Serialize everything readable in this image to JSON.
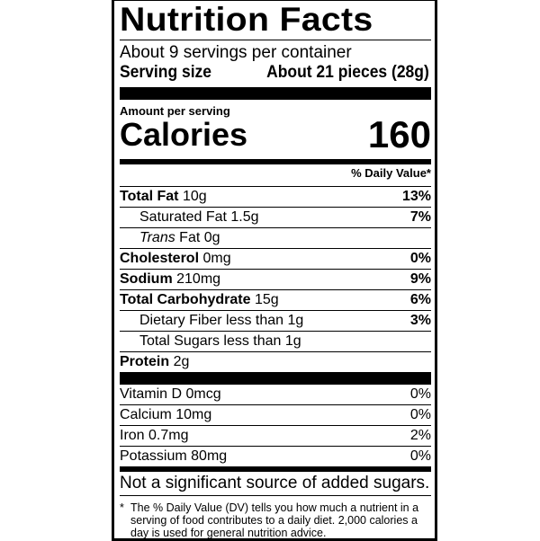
{
  "title": "Nutrition Facts",
  "servings_per_container": "About 9 servings per container",
  "serving_size": {
    "label": "Serving size",
    "value": "About 21 pieces (28g)"
  },
  "amount_per_serving": "Amount per serving",
  "calories": {
    "label": "Calories",
    "value": "160"
  },
  "daily_value_header": "% Daily Value*",
  "nutrients": [
    {
      "name": "Total Fat",
      "amount": "10g",
      "dv": "13%"
    },
    {
      "name": "Saturated Fat",
      "amount": "1.5g",
      "dv": "7%"
    },
    {
      "name": "Trans",
      "name_suffix": "Fat",
      "amount": "0g",
      "dv": ""
    },
    {
      "name": "Cholesterol",
      "amount": "0mg",
      "dv": "0%"
    },
    {
      "name": "Sodium",
      "amount": "210mg",
      "dv": "9%"
    },
    {
      "name": "Total Carbohydrate",
      "amount": "15g",
      "dv": "6%"
    },
    {
      "name": "Dietary Fiber",
      "amount": "less than 1g",
      "dv": "3%"
    },
    {
      "name": "Total Sugars",
      "amount": "less than 1g",
      "dv": ""
    },
    {
      "name": "Protein",
      "amount": "2g",
      "dv": ""
    }
  ],
  "vitamins": [
    {
      "text": "Vitamin D 0mcg",
      "dv": "0%"
    },
    {
      "text": "Calcium 10mg",
      "dv": "0%"
    },
    {
      "text": "Iron 0.7mg",
      "dv": "2%"
    },
    {
      "text": "Potassium 80mg",
      "dv": "0%"
    }
  ],
  "note": "Not a significant source of added sugars.",
  "footnote": {
    "star": "*",
    "text": "The % Daily Value (DV) tells you how much a nutrient in a serving of food contributes to a daily diet. 2,000 calories a day is used for general nutrition advice."
  }
}
